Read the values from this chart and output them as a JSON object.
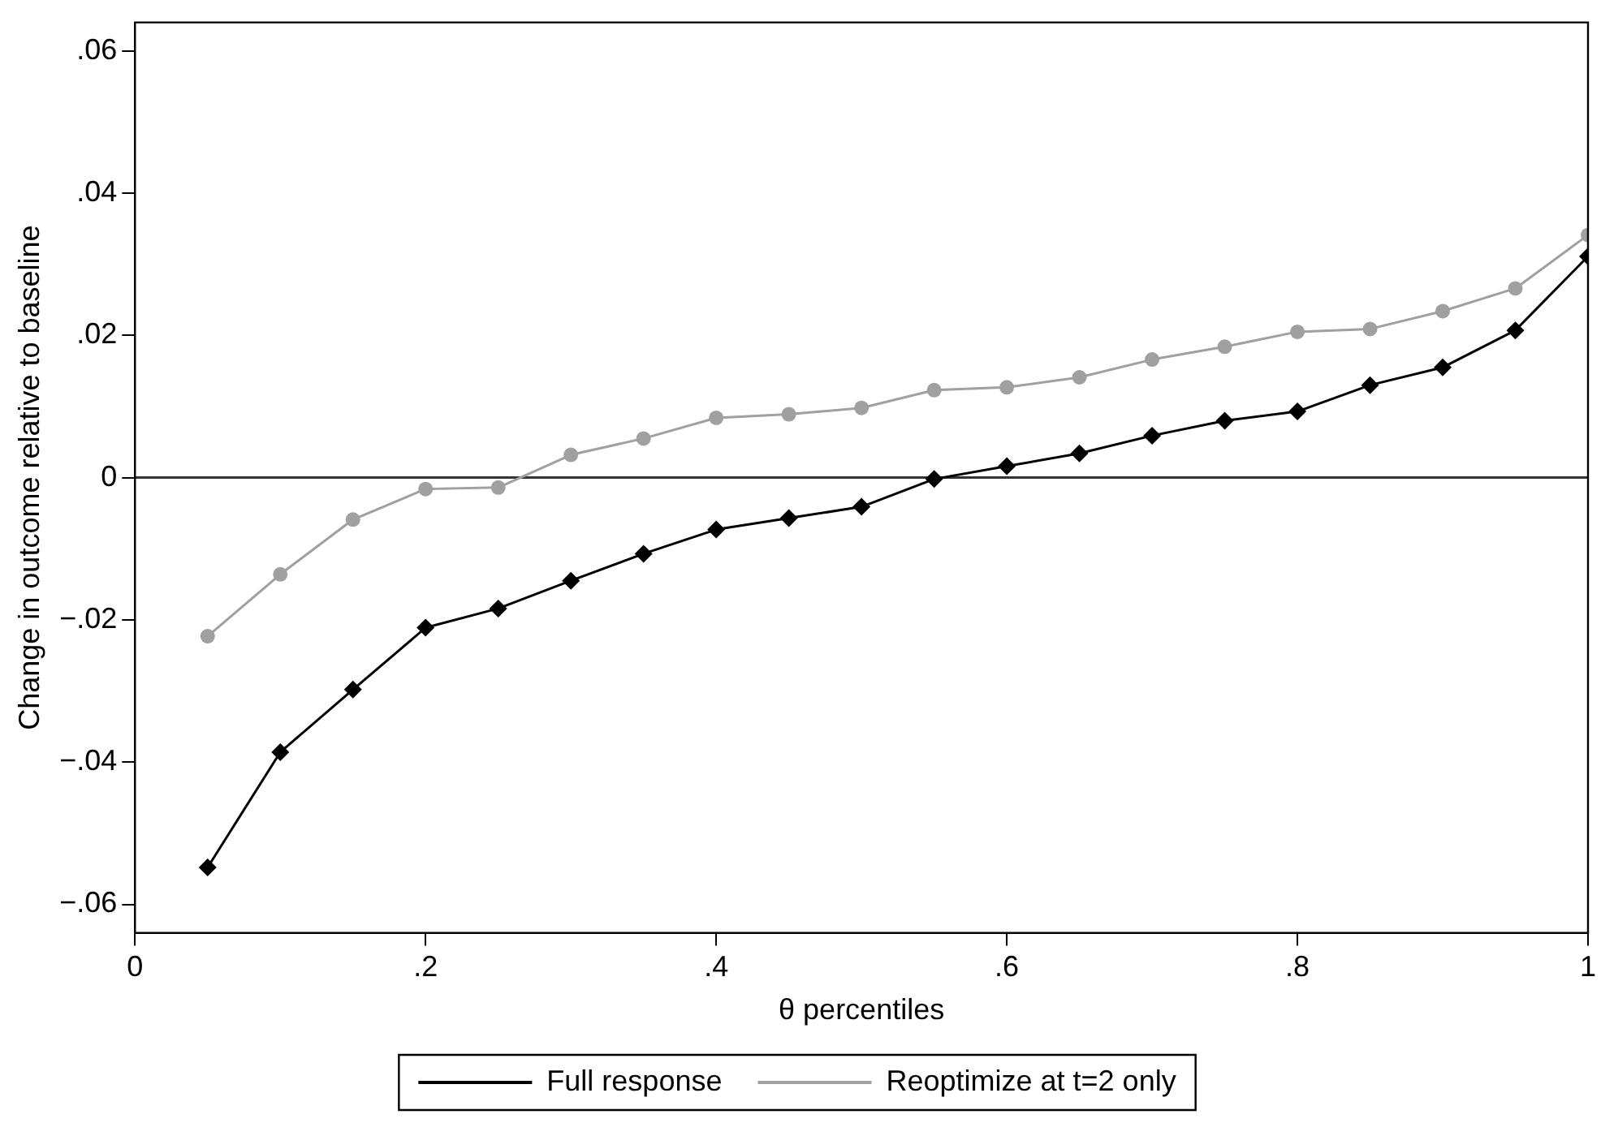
{
  "chart_data": {
    "type": "line",
    "xlabel": "θ percentiles",
    "ylabel": "Change in outcome relative to baseline",
    "x": [
      0.05,
      0.1,
      0.15,
      0.2,
      0.25,
      0.3,
      0.35,
      0.4,
      0.45,
      0.5,
      0.55,
      0.6,
      0.65,
      0.7,
      0.75,
      0.8,
      0.85,
      0.9,
      0.95,
      1.0
    ],
    "series": [
      {
        "name": "Full response",
        "color": "#000000",
        "marker": "diamond",
        "values": [
          -0.0548,
          -0.0386,
          -0.0298,
          -0.0211,
          -0.0184,
          -0.0145,
          -0.0107,
          -0.0073,
          -0.0057,
          -0.0041,
          -0.0002,
          0.0016,
          0.0034,
          0.0059,
          0.008,
          0.0093,
          0.013,
          0.0155,
          0.0207,
          0.0311
        ]
      },
      {
        "name": "Reoptimize at t=2 only",
        "color": "#a0a0a0",
        "marker": "circle",
        "values": [
          -0.0223,
          -0.0136,
          -0.0059,
          -0.0016,
          -0.0014,
          0.0032,
          0.0055,
          0.0084,
          0.0089,
          0.0098,
          0.0123,
          0.0127,
          0.0141,
          0.0166,
          0.0184,
          0.0205,
          0.0209,
          0.0234,
          0.0266,
          0.0341
        ]
      }
    ],
    "xlim": [
      0,
      1
    ],
    "xticks": [
      0,
      {
        "value": 0.2,
        "label": ".2"
      },
      {
        "value": 0.4,
        "label": ".4"
      },
      {
        "value": 0.6,
        "label": ".6"
      },
      {
        "value": 0.8,
        "label": ".8"
      },
      1
    ],
    "ylim": [
      -0.064,
      0.064
    ],
    "yticks": [
      {
        "value": -0.06,
        "label": "−.06"
      },
      {
        "value": -0.04,
        "label": "−.04"
      },
      {
        "value": -0.02,
        "label": "−.02"
      },
      0,
      {
        "value": 0.02,
        "label": ".02"
      },
      {
        "value": 0.04,
        "label": ".04"
      },
      {
        "value": 0.06,
        "label": ".06"
      }
    ],
    "ref_lines": [
      {
        "axis": "y",
        "value": 0,
        "color": "#333333"
      }
    ],
    "grid": false,
    "legend": "bottom",
    "line_style": "solid"
  }
}
